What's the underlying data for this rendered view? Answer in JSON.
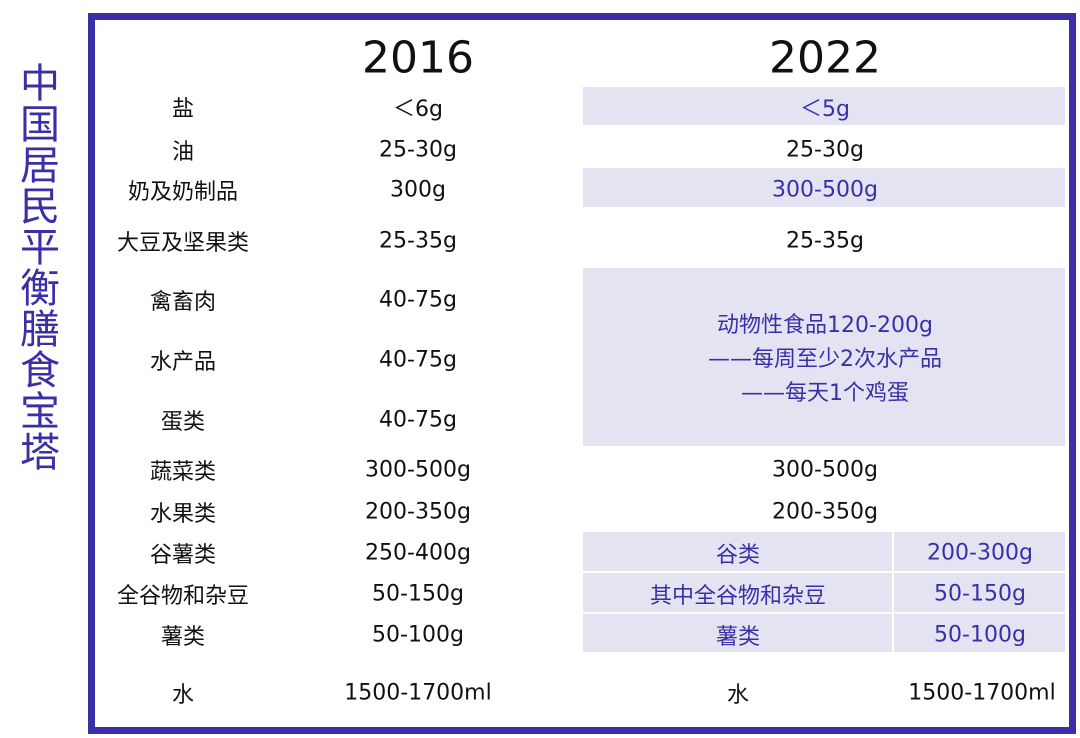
{
  "title": "中国居民平衡膳食宝塔",
  "table": {
    "header": [
      "2016",
      "2022"
    ],
    "rows": [
      {
        "item": "盐",
        "v2016": "＜6g",
        "v2022": "＜5g"
      },
      {
        "item": "油",
        "v2016": "25-30g",
        "v2022": "25-30g"
      },
      {
        "item": "奶及奶制品",
        "v2016": "300g",
        "v2022": "300-500g"
      },
      {
        "item": "大豆及坚果类",
        "v2016": "25-35g",
        "v2022": "25-35g"
      },
      {
        "item": "禽畜肉",
        "v2016": "40-75g"
      },
      {
        "item": "水产品",
        "v2016": "40-75g"
      },
      {
        "item": "蛋类",
        "v2016": "40-75g"
      },
      {
        "item": "蔬菜类",
        "v2016": "300-500g",
        "v2022": "300-500g"
      },
      {
        "item": "水果类",
        "v2016": "200-350g",
        "v2022": "200-350g"
      },
      {
        "item": "谷薯类",
        "v2016": "250-400g",
        "v2022": [
          "谷类",
          "200-300g"
        ]
      },
      {
        "item": "全谷物和杂豆",
        "v2016": "50-150g",
        "v2022": [
          "其中全谷物和杂豆",
          "50-150g"
        ]
      },
      {
        "item": "薯类",
        "v2016": "50-100g",
        "v2022": [
          "薯类",
          "50-100g"
        ]
      },
      {
        "item": "水",
        "v2016": "1500-1700ml",
        "v2022": [
          "水",
          "1500-1700ml"
        ]
      }
    ],
    "animal_2022": [
      "动物性食品120-200g",
      "——每周至少2次水产品",
      "——每天1个鸡蛋"
    ]
  }
}
